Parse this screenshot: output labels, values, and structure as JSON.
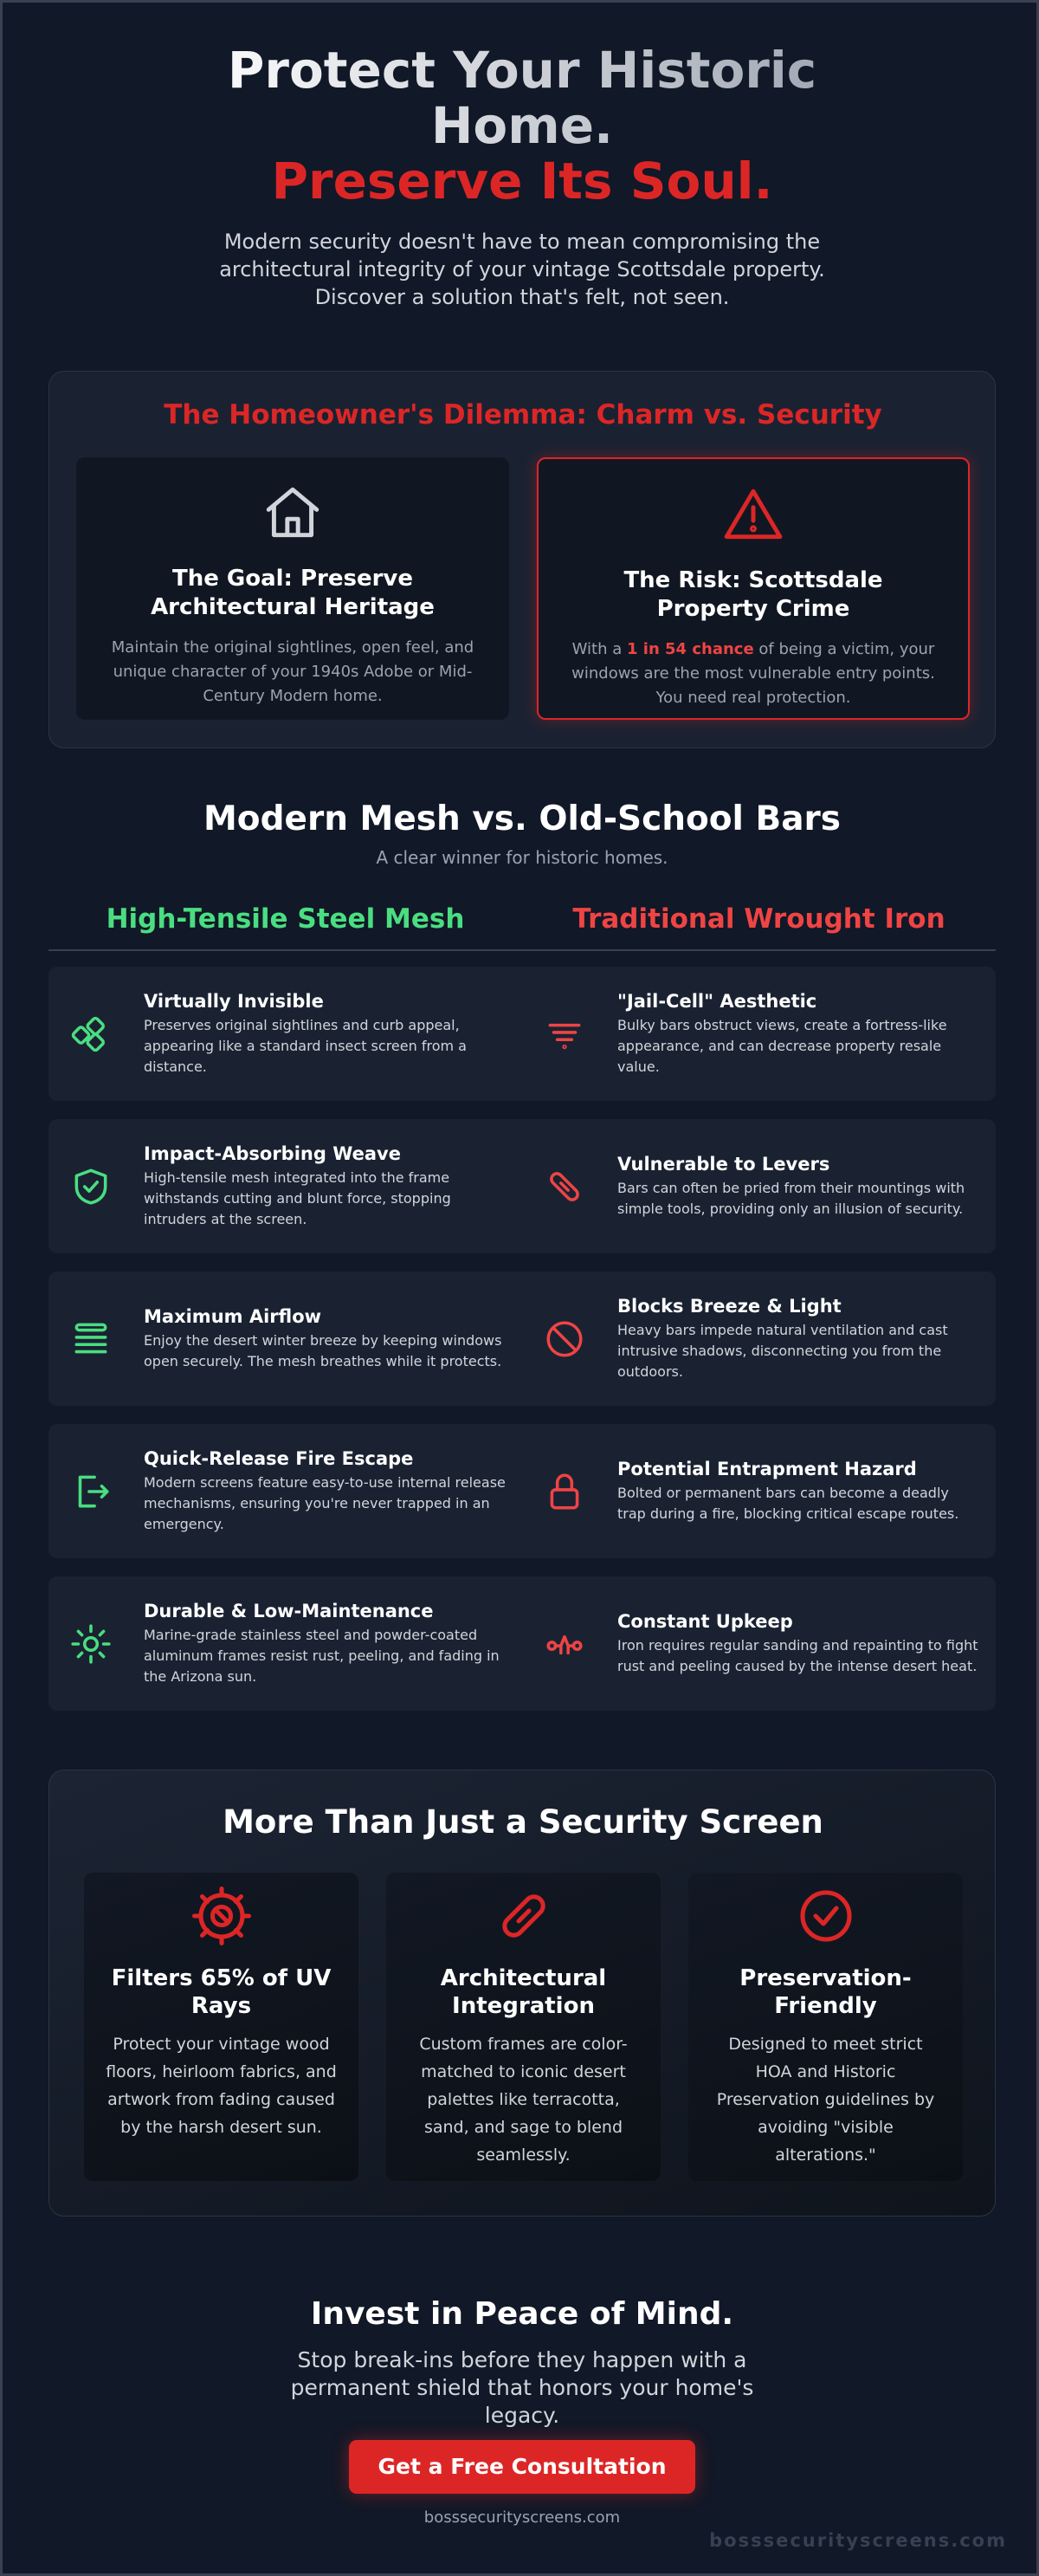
{
  "header": {
    "title_line1": "Protect Your Historic Home.",
    "title_line2": "Preserve Its Soul.",
    "subtitle": "Modern security doesn't have to mean compromising the architectural integrity of your vintage Scottsdale property. Discover a solution that's felt, not seen."
  },
  "dilemma": {
    "title": "The Homeowner's Dilemma: Charm vs. Security",
    "goal": {
      "title": "The Goal: Preserve Architectural Heritage",
      "text": "Maintain the original sightlines, open feel, and unique character of your 1940s Adobe or Mid-Century Modern home."
    },
    "risk": {
      "title": "The Risk: Scottsdale Property Crime",
      "text_before": "With a ",
      "highlight": "1 in 54 chance",
      "text_after": " of being a victim, your windows are the most vulnerable entry points. You need real protection."
    }
  },
  "comparison": {
    "title": "Modern Mesh vs. Old-School Bars",
    "subtitle": "A clear winner for historic homes.",
    "mesh_heading": "High-Tensile Steel Mesh",
    "bars_heading": "Traditional Wrought Iron",
    "rows": [
      {
        "mesh": {
          "title": "Virtually Invisible",
          "text": "Preserves original sightlines and curb appeal, appearing like a standard insect screen from a distance."
        },
        "bars": {
          "title": "\"Jail-Cell\" Aesthetic",
          "text": "Bulky bars obstruct views, create a fortress-like appearance, and can decrease property resale value."
        }
      },
      {
        "mesh": {
          "title": "Impact-Absorbing Weave",
          "text": "High-tensile mesh integrated into the frame withstands cutting and blunt force, stopping intruders at the screen."
        },
        "bars": {
          "title": "Vulnerable to Levers",
          "text": "Bars can often be pried from their mountings with simple tools, providing only an illusion of security."
        }
      },
      {
        "mesh": {
          "title": "Maximum Airflow",
          "text": "Enjoy the desert winter breeze by keeping windows open securely. The mesh breathes while it protects."
        },
        "bars": {
          "title": "Blocks Breeze & Light",
          "text": "Heavy bars impede natural ventilation and cast intrusive shadows, disconnecting you from the outdoors."
        }
      },
      {
        "mesh": {
          "title": "Quick-Release Fire Escape",
          "text": "Modern screens feature easy-to-use internal release mechanisms, ensuring you're never trapped in an emergency."
        },
        "bars": {
          "title": "Potential Entrapment Hazard",
          "text": "Bolted or permanent bars can become a deadly trap during a fire, blocking critical escape routes."
        }
      },
      {
        "mesh": {
          "title": "Durable & Low-Maintenance",
          "text": "Marine-grade stainless steel and powder-coated aluminum frames resist rust, peeling, and fading in the Arizona sun."
        },
        "bars": {
          "title": "Constant Upkeep",
          "text": "Iron requires regular sanding and repainting to fight rust and peeling caused by the intense desert heat."
        }
      }
    ]
  },
  "features": {
    "title": "More Than Just a Security Screen",
    "cards": [
      {
        "title": "Filters 65% of UV Rays",
        "text": "Protect your vintage wood floors, heirloom fabrics, and artwork from fading caused by the harsh desert sun."
      },
      {
        "title": "Architectural Integration",
        "text": "Custom frames are color-matched to iconic desert palettes like terracotta, sand, and sage to blend seamlessly."
      },
      {
        "title": "Preservation-Friendly",
        "text": "Designed to meet strict HOA and Historic Preservation guidelines by avoiding \"visible alterations.\""
      }
    ]
  },
  "cta": {
    "title": "Invest in Peace of Mind.",
    "text": "Stop break-ins before they happen with a permanent shield that honors your home's legacy.",
    "button": "Get a Free Consultation",
    "website": "bosssecurityscreens.com"
  },
  "watermark": "bosssecurityscreens.com"
}
